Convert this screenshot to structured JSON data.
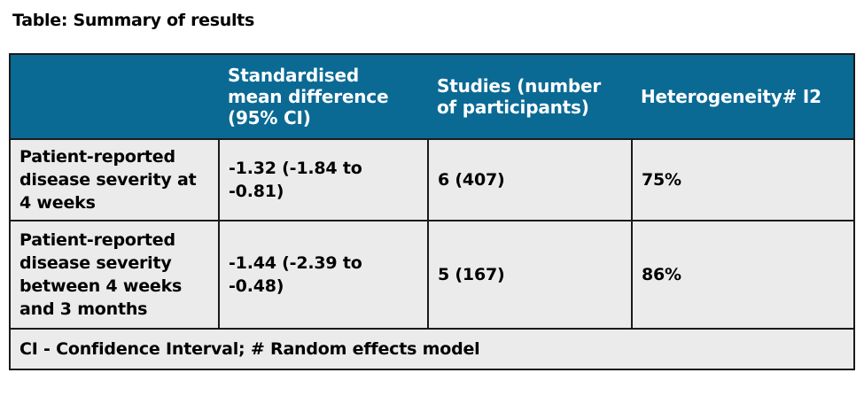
{
  "caption": "Table: Summary of results",
  "table": {
    "headers": [
      "",
      "Standardised mean difference (95% CI)",
      "Studies (number of participants)",
      "Heterogeneity# I2"
    ],
    "rows": [
      {
        "outcome": "Patient-reported disease severity at 4 weeks",
        "smd": "-1.32 (-1.84 to -0.81)",
        "studies": "6 (407)",
        "heterogeneity": "75%"
      },
      {
        "outcome": "Patient-reported disease severity between 4 weeks and 3 months",
        "smd": "-1.44 (-2.39 to -0.48)",
        "studies": "5 (167)",
        "heterogeneity": "86%"
      }
    ],
    "footnote": "CI - Confidence Interval; # Random effects model"
  }
}
